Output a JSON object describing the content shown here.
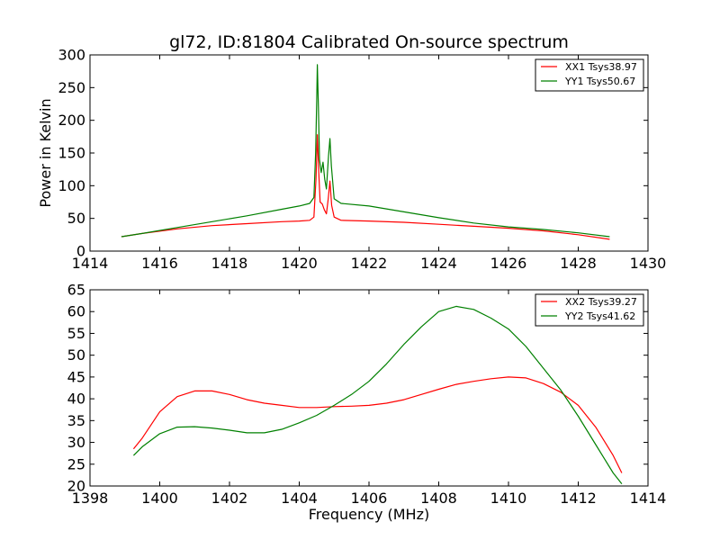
{
  "chart_data": [
    {
      "type": "line",
      "title": "gl72, ID:81804 Calibrated On-source spectrum",
      "xlabel": "",
      "ylabel": "Power in Kelvin",
      "xlim": [
        1414,
        1430
      ],
      "ylim": [
        0,
        300
      ],
      "xticks": [
        1414,
        1416,
        1418,
        1420,
        1422,
        1424,
        1426,
        1428,
        1430
      ],
      "yticks": [
        0,
        50,
        100,
        150,
        200,
        250,
        300
      ],
      "legend_position": "top-right",
      "series": [
        {
          "name": "XX1 Tsys38.97",
          "color": "#ff0000",
          "points": [
            [
              1414.9,
              22
            ],
            [
              1415.5,
              27
            ],
            [
              1416.5,
              34
            ],
            [
              1417.5,
              39
            ],
            [
              1418.5,
              42
            ],
            [
              1419.5,
              45
            ],
            [
              1420.0,
              46
            ],
            [
              1420.3,
              47
            ],
            [
              1420.42,
              52
            ],
            [
              1420.48,
              110
            ],
            [
              1420.52,
              178
            ],
            [
              1420.56,
              120
            ],
            [
              1420.6,
              75
            ],
            [
              1420.66,
              72
            ],
            [
              1420.72,
              63
            ],
            [
              1420.78,
              57
            ],
            [
              1420.83,
              80
            ],
            [
              1420.88,
              107
            ],
            [
              1420.93,
              70
            ],
            [
              1421.0,
              52
            ],
            [
              1421.2,
              47
            ],
            [
              1422.0,
              46
            ],
            [
              1423.0,
              44
            ],
            [
              1424.0,
              41
            ],
            [
              1425.0,
              38
            ],
            [
              1426.0,
              35
            ],
            [
              1427.0,
              31
            ],
            [
              1428.0,
              25
            ],
            [
              1428.9,
              18
            ]
          ]
        },
        {
          "name": "YY1 Tsys50.67",
          "color": "#008000",
          "points": [
            [
              1414.9,
              22
            ],
            [
              1415.5,
              27
            ],
            [
              1416.5,
              36
            ],
            [
              1417.5,
              45
            ],
            [
              1418.5,
              54
            ],
            [
              1419.5,
              64
            ],
            [
              1420.0,
              69
            ],
            [
              1420.3,
              73
            ],
            [
              1420.42,
              82
            ],
            [
              1420.47,
              150
            ],
            [
              1420.5,
              230
            ],
            [
              1420.52,
              285
            ],
            [
              1420.55,
              220
            ],
            [
              1420.58,
              140
            ],
            [
              1420.63,
              120
            ],
            [
              1420.68,
              136
            ],
            [
              1420.73,
              110
            ],
            [
              1420.78,
              95
            ],
            [
              1420.84,
              145
            ],
            [
              1420.88,
              172
            ],
            [
              1420.92,
              130
            ],
            [
              1421.0,
              80
            ],
            [
              1421.2,
              73
            ],
            [
              1422.0,
              69
            ],
            [
              1423.0,
              60
            ],
            [
              1424.0,
              51
            ],
            [
              1425.0,
              43
            ],
            [
              1426.0,
              37
            ],
            [
              1427.0,
              33
            ],
            [
              1428.0,
              28
            ],
            [
              1428.9,
              22
            ]
          ]
        }
      ]
    },
    {
      "type": "line",
      "title": "",
      "xlabel": "Frequency (MHz)",
      "ylabel": "",
      "xlim": [
        1398,
        1414
      ],
      "ylim": [
        20,
        65
      ],
      "xticks": [
        1398,
        1400,
        1402,
        1404,
        1406,
        1408,
        1410,
        1412,
        1414
      ],
      "yticks": [
        20,
        25,
        30,
        35,
        40,
        45,
        50,
        55,
        60,
        65
      ],
      "legend_position": "top-right",
      "series": [
        {
          "name": "XX2 Tsys39.27",
          "color": "#ff0000",
          "points": [
            [
              1399.25,
              28.5
            ],
            [
              1399.5,
              31
            ],
            [
              1400.0,
              37
            ],
            [
              1400.5,
              40.5
            ],
            [
              1401.0,
              41.8
            ],
            [
              1401.5,
              41.8
            ],
            [
              1402.0,
              41
            ],
            [
              1402.5,
              39.8
            ],
            [
              1403.0,
              39
            ],
            [
              1403.5,
              38.5
            ],
            [
              1404.0,
              38
            ],
            [
              1404.5,
              38
            ],
            [
              1405.0,
              38.2
            ],
            [
              1405.5,
              38.3
            ],
            [
              1406.0,
              38.5
            ],
            [
              1406.5,
              39
            ],
            [
              1407.0,
              39.8
            ],
            [
              1407.5,
              41
            ],
            [
              1408.0,
              42.2
            ],
            [
              1408.5,
              43.3
            ],
            [
              1409.0,
              44
            ],
            [
              1409.5,
              44.6
            ],
            [
              1410.0,
              45
            ],
            [
              1410.5,
              44.8
            ],
            [
              1411.0,
              43.5
            ],
            [
              1411.5,
              41.5
            ],
            [
              1412.0,
              38.5
            ],
            [
              1412.5,
              33.5
            ],
            [
              1413.0,
              27
            ],
            [
              1413.25,
              23
            ]
          ]
        },
        {
          "name": "YY2 Tsys41.62",
          "color": "#008000",
          "points": [
            [
              1399.25,
              27
            ],
            [
              1399.5,
              29
            ],
            [
              1400.0,
              32
            ],
            [
              1400.5,
              33.5
            ],
            [
              1401.0,
              33.6
            ],
            [
              1401.5,
              33.3
            ],
            [
              1402.0,
              32.8
            ],
            [
              1402.5,
              32.2
            ],
            [
              1403.0,
              32.2
            ],
            [
              1403.5,
              33
            ],
            [
              1404.0,
              34.5
            ],
            [
              1404.5,
              36.2
            ],
            [
              1405.0,
              38.5
            ],
            [
              1405.5,
              41
            ],
            [
              1406.0,
              44
            ],
            [
              1406.5,
              48
            ],
            [
              1407.0,
              52.5
            ],
            [
              1407.5,
              56.5
            ],
            [
              1408.0,
              60
            ],
            [
              1408.5,
              61.2
            ],
            [
              1409.0,
              60.5
            ],
            [
              1409.5,
              58.5
            ],
            [
              1410.0,
              56
            ],
            [
              1410.5,
              52
            ],
            [
              1411.0,
              47
            ],
            [
              1411.5,
              42
            ],
            [
              1412.0,
              36
            ],
            [
              1412.5,
              29.5
            ],
            [
              1413.0,
              23
            ],
            [
              1413.25,
              20.5
            ]
          ]
        }
      ]
    }
  ]
}
